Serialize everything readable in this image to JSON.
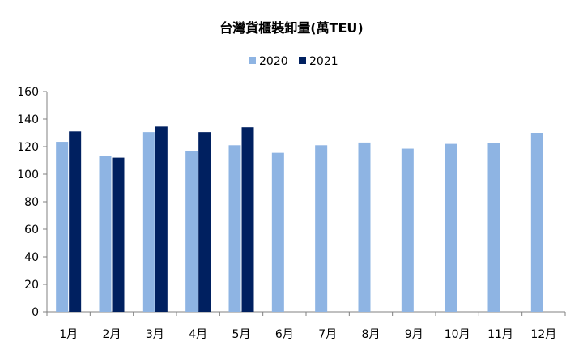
{
  "chart_data": {
    "type": "bar",
    "title": "台灣貨櫃裝卸量(萬TEU)",
    "xlabel": "",
    "ylabel": "",
    "ylim": [
      0,
      160
    ],
    "yticks": [
      0,
      20,
      40,
      60,
      80,
      100,
      120,
      140,
      160
    ],
    "grid": false,
    "legend": "top-center",
    "categories": [
      "1月",
      "2月",
      "3月",
      "4月",
      "5月",
      "6月",
      "7月",
      "8月",
      "9月",
      "10月",
      "11月",
      "12月"
    ],
    "series": [
      {
        "name": "2020",
        "color": "#8eb4e3",
        "values": [
          123.5,
          113.5,
          130.5,
          117,
          121,
          115.5,
          121,
          123,
          118.5,
          122,
          122.5,
          130
        ]
      },
      {
        "name": "2021",
        "color": "#002060",
        "values": [
          131,
          112,
          134.5,
          130.5,
          134,
          null,
          null,
          null,
          null,
          null,
          null,
          null
        ]
      }
    ]
  }
}
